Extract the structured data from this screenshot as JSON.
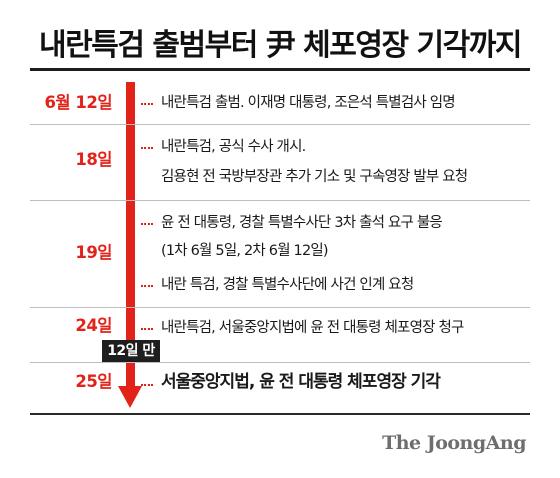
{
  "title": "내란특검 출범부터 尹 체포영장 기각까지",
  "timeline": [
    {
      "date": "6월 12일",
      "events": [
        "내란특검 출범. 이재명 대통령, 조은석 특별검사 임명"
      ]
    },
    {
      "date": "18일",
      "events": [
        "내란특검, 공식 수사 개시.",
        "김용현 전 국방부장관 추가 기소 및 구속영장 발부 요청"
      ]
    },
    {
      "date": "19일",
      "events": [
        "윤 전 대통령, 경찰 특별수사단 3차 출석 요구 불응",
        "(1차 6월 5일, 2차 6월 12일)",
        "내란 특검, 경찰 특별수사단에 사건 인계 요청"
      ]
    },
    {
      "date": "24일",
      "events": [
        "내란특검, 서울중앙지법에 윤 전 대통령 체포영장 청구"
      ]
    },
    {
      "date": "25일",
      "events": [
        "서울중앙지법, 윤 전 대통령 체포영장 기각"
      ]
    }
  ],
  "badge": "12일 만",
  "brand": "The JoongAng",
  "colors": {
    "accent": "#e2231a",
    "text": "#1a1a1a",
    "badge_bg": "#1e1e1e",
    "brand": "#6e6e6e"
  }
}
